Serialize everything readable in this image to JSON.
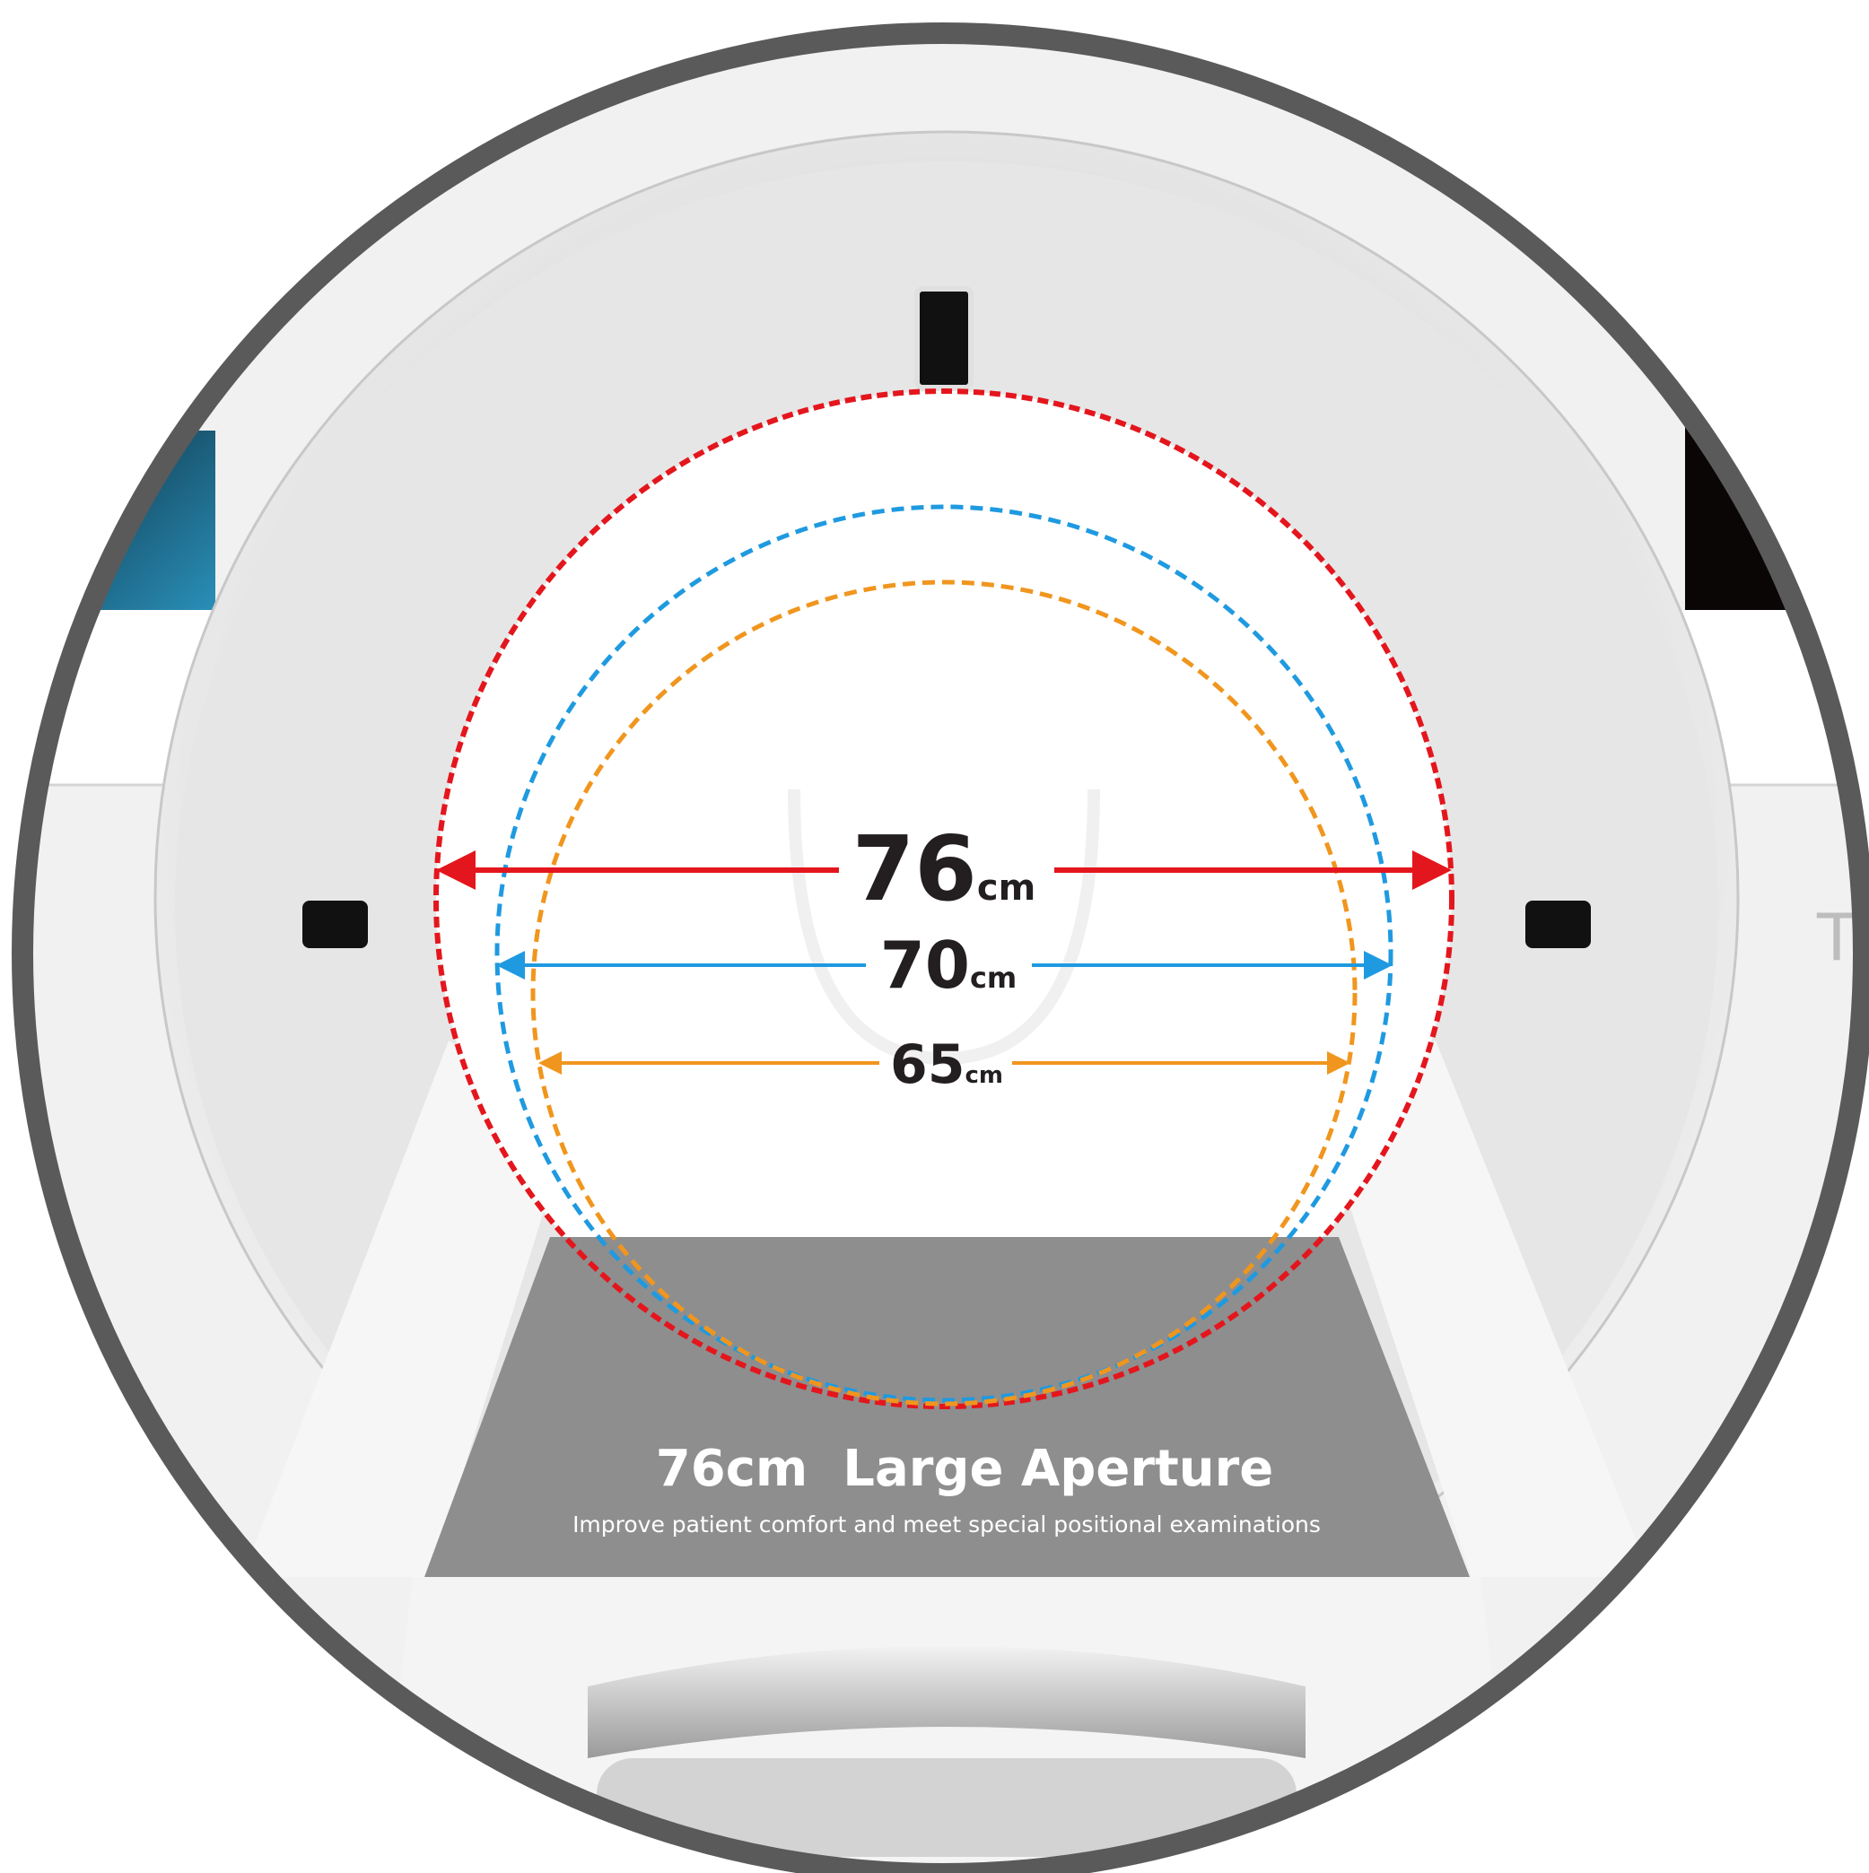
{
  "measurements": [
    {
      "value": "76",
      "unit": "cm"
    },
    {
      "value": "70",
      "unit": "cm"
    },
    {
      "value": "65",
      "unit": "cm"
    }
  ],
  "panel": {
    "title": "76cm  Large Aperture",
    "subtitle": "Improve patient comfort and meet special positional examinations"
  },
  "side_text": "T"
}
